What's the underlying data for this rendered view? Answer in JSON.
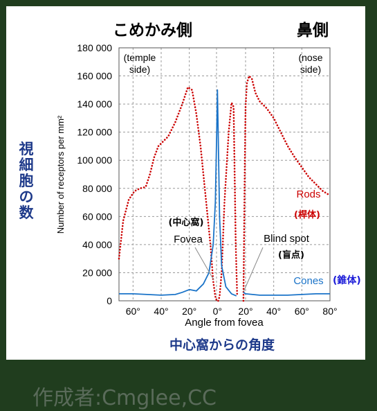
{
  "header": {
    "left_jp": "こめかみ側",
    "right_jp": "鼻側",
    "temple_label": "(temple side)",
    "nose_label": "(nose side)"
  },
  "axis_annotations": {
    "ylabel_jp": "視細胞の数",
    "xlabel_jp": "中心窩からの角度"
  },
  "labels": {
    "fovea_jp": "(中心窩)",
    "fovea_en": "Fovea",
    "blind_spot_en": "Blind spot",
    "blind_spot_jp": "(盲点)",
    "rods_en": "Rods",
    "rods_jp": "(桿体)",
    "cones_en": "Cones",
    "cones_jp": "(錐体)"
  },
  "credit": "作成者:Cmglee,CC",
  "colors": {
    "rods": "#cc0000",
    "cones": "#1a73c8",
    "title_blue": "#1e3a8a",
    "background": "#203d1e"
  },
  "chart_data": {
    "type": "line",
    "xlabel": "Angle from fovea",
    "ylabel": "Number of receptors per mm²",
    "xlim": [
      -70,
      80
    ],
    "ylim": [
      0,
      180000
    ],
    "x_ticks": [
      -60,
      -40,
      -20,
      0,
      20,
      40,
      60,
      80
    ],
    "x_tick_labels": [
      "60°",
      "40°",
      "20°",
      "0°",
      "20°",
      "40°",
      "60°",
      "80°"
    ],
    "y_ticks": [
      0,
      20000,
      40000,
      60000,
      80000,
      100000,
      120000,
      140000,
      160000,
      180000
    ],
    "y_tick_labels": [
      "0",
      "20 000",
      "40 000",
      "60 000",
      "80 000",
      "100 000",
      "120 000",
      "140 000",
      "160 000",
      "180 000"
    ],
    "series": [
      {
        "name": "Rods",
        "style": "dotted",
        "segments": [
          {
            "x": [
              -70,
              -67,
              -63,
              -59,
              -55,
              -51,
              -48,
              -45,
              -42,
              -39,
              -35,
              -30,
              -25,
              -21,
              -18,
              -15,
              -12,
              -8,
              -5,
              -3,
              -1.5,
              -0.5
            ],
            "y": [
              30000,
              57000,
              72000,
              78000,
              80000,
              81000,
              90000,
              102000,
              110000,
              113000,
              117000,
              127000,
              140000,
              152000,
              150000,
              133000,
              110000,
              70000,
              40000,
              14000,
              3000,
              0
            ]
          },
          {
            "x": [
              0.5,
              1.5,
              3,
              5,
              8,
              10,
              11.5,
              13,
              14
            ],
            "y": [
              0,
              3000,
              20000,
              70000,
              120000,
              141000,
              138000,
              40000,
              5000
            ]
          },
          {
            "x": [
              18.5,
              19.5,
              20,
              21,
              22.5,
              24.5,
              27,
              30,
              35,
              40,
              45,
              50,
              55,
              60,
              65,
              70,
              75,
              80
            ],
            "y": [
              0,
              100000,
              138000,
              155000,
              160000,
              158000,
              148000,
              142000,
              137000,
              130000,
              120000,
              110000,
              102000,
              95000,
              88000,
              83000,
              78000,
              75000
            ]
          }
        ]
      },
      {
        "name": "Cones",
        "style": "solid",
        "segments": [
          {
            "x": [
              -70,
              -60,
              -50,
              -40,
              -30,
              -25,
              -20,
              -15,
              -10,
              -6,
              -3,
              -1.5,
              -0.5,
              0,
              0.5,
              1.5,
              3,
              6,
              10,
              13.5
            ],
            "y": [
              5000,
              5000,
              4500,
              4000,
              4500,
              6000,
              8000,
              7000,
              12000,
              20000,
              40000,
              70000,
              120000,
              150000,
              120000,
              60000,
              25000,
              10000,
              5000,
              3500
            ]
          },
          {
            "x": [
              18.5,
              20,
              25,
              30,
              40,
              50,
              60,
              70,
              80
            ],
            "y": [
              6000,
              5000,
              4500,
              4000,
              4000,
              4000,
              4500,
              5000,
              5000
            ]
          }
        ]
      }
    ]
  }
}
